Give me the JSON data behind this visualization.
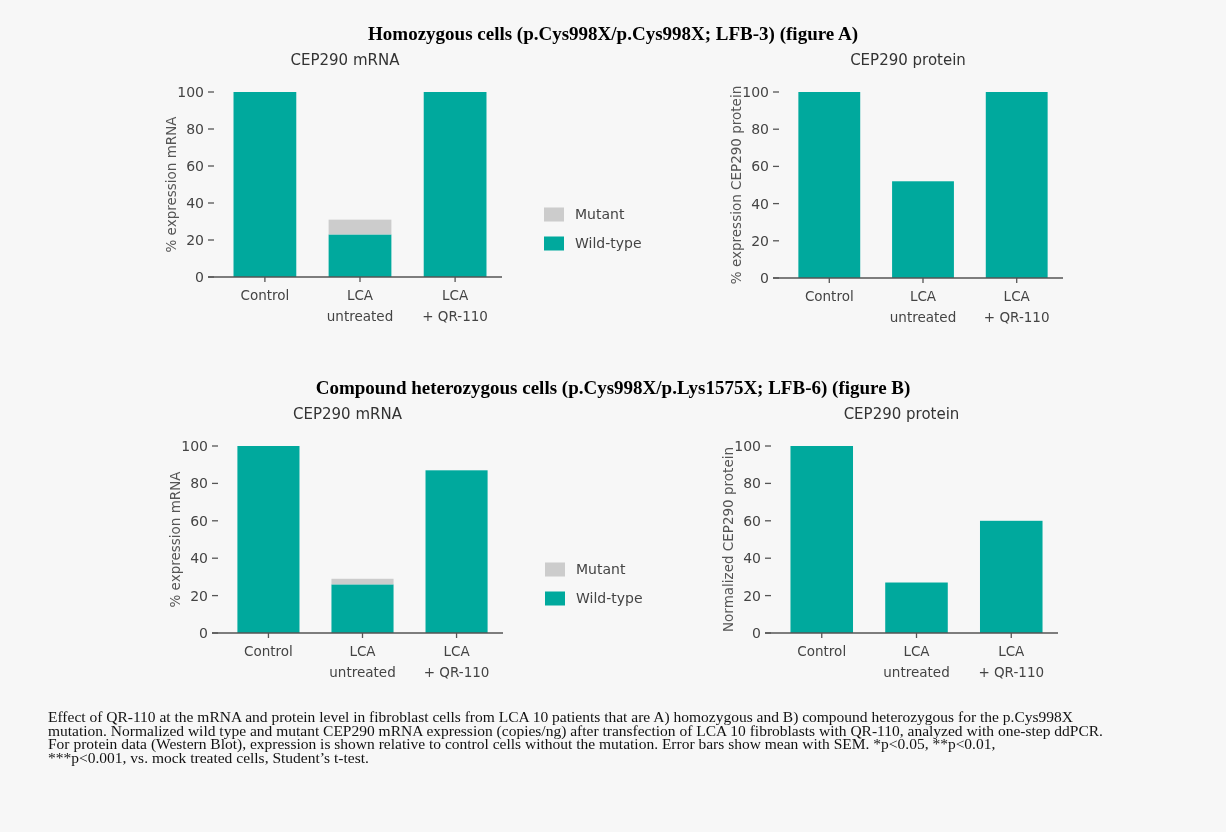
{
  "chart_data": [
    {
      "type": "bar",
      "title": "Homozygous cells (p.Cys998X/p.Cys998X; LFB-3) (figure A)",
      "subtitle": "CEP290 mRNA",
      "ylabel": "% expression mRNA",
      "categories": [
        "Control",
        "LCA untreated",
        "LCA + QR-110"
      ],
      "stacked": true,
      "series": [
        {
          "name": "Wild-type",
          "color": "#00a99d",
          "values": [
            100,
            23,
            100
          ]
        },
        {
          "name": "Mutant",
          "color": "#cccccc",
          "values": [
            0,
            8,
            0
          ]
        }
      ],
      "ylim": [
        0,
        100
      ],
      "yticks": [
        0,
        20,
        40,
        60,
        80,
        100
      ],
      "legend": "right"
    },
    {
      "type": "bar",
      "subtitle": "CEP290 protein",
      "ylabel": "% expression CEP290 protein",
      "categories": [
        "Control",
        "LCA untreated",
        "LCA + QR-110"
      ],
      "values": [
        100,
        52,
        100
      ],
      "color": "#00a99d",
      "ylim": [
        0,
        100
      ],
      "yticks": [
        0,
        20,
        40,
        60,
        80,
        100
      ]
    },
    {
      "type": "bar",
      "title": "Compound heterozygous cells (p.Cys998X/p.Lys1575X; LFB-6) (figure B)",
      "subtitle": "CEP290 mRNA",
      "ylabel": "% expression mRNA",
      "categories": [
        "Control",
        "LCA untreated",
        "LCA + QR-110"
      ],
      "stacked": true,
      "series": [
        {
          "name": "Wild-type",
          "color": "#00a99d",
          "values": [
            100,
            26,
            87
          ]
        },
        {
          "name": "Mutant",
          "color": "#cccccc",
          "values": [
            0,
            3,
            0
          ]
        }
      ],
      "ylim": [
        0,
        100
      ],
      "yticks": [
        0,
        20,
        40,
        60,
        80,
        100
      ],
      "legend": "right"
    },
    {
      "type": "bar",
      "subtitle": "CEP290 protein",
      "ylabel": "Normalized CEP290 protein",
      "categories": [
        "Control",
        "LCA untreated",
        "LCA + QR-110"
      ],
      "values": [
        100,
        27,
        60
      ],
      "color": "#00a99d",
      "ylim": [
        0,
        100
      ],
      "yticks": [
        0,
        20,
        40,
        60,
        80,
        100
      ],
      "annotations": [
        "Effect of QR-110 at the mRNA and protein level in fibroblast cells from LCA 10 patients that are A) homozygous and B) compound heterozygous for the p.Cys998X mutation. Normalized wild type and mutant CEP290 mRNA expression (copies/ng) after transfection of LCA 10 fibroblasts with QR-110, analyzed with one-step ddPCR. For protein data (Western Blot), expression is shown relative to control cells without the mutation. Error bars show mean with SEM. *p<0.05, **p<0.01, ***p<0.001, vs. mock treated cells, Student’s t-test."
      ]
    }
  ]
}
